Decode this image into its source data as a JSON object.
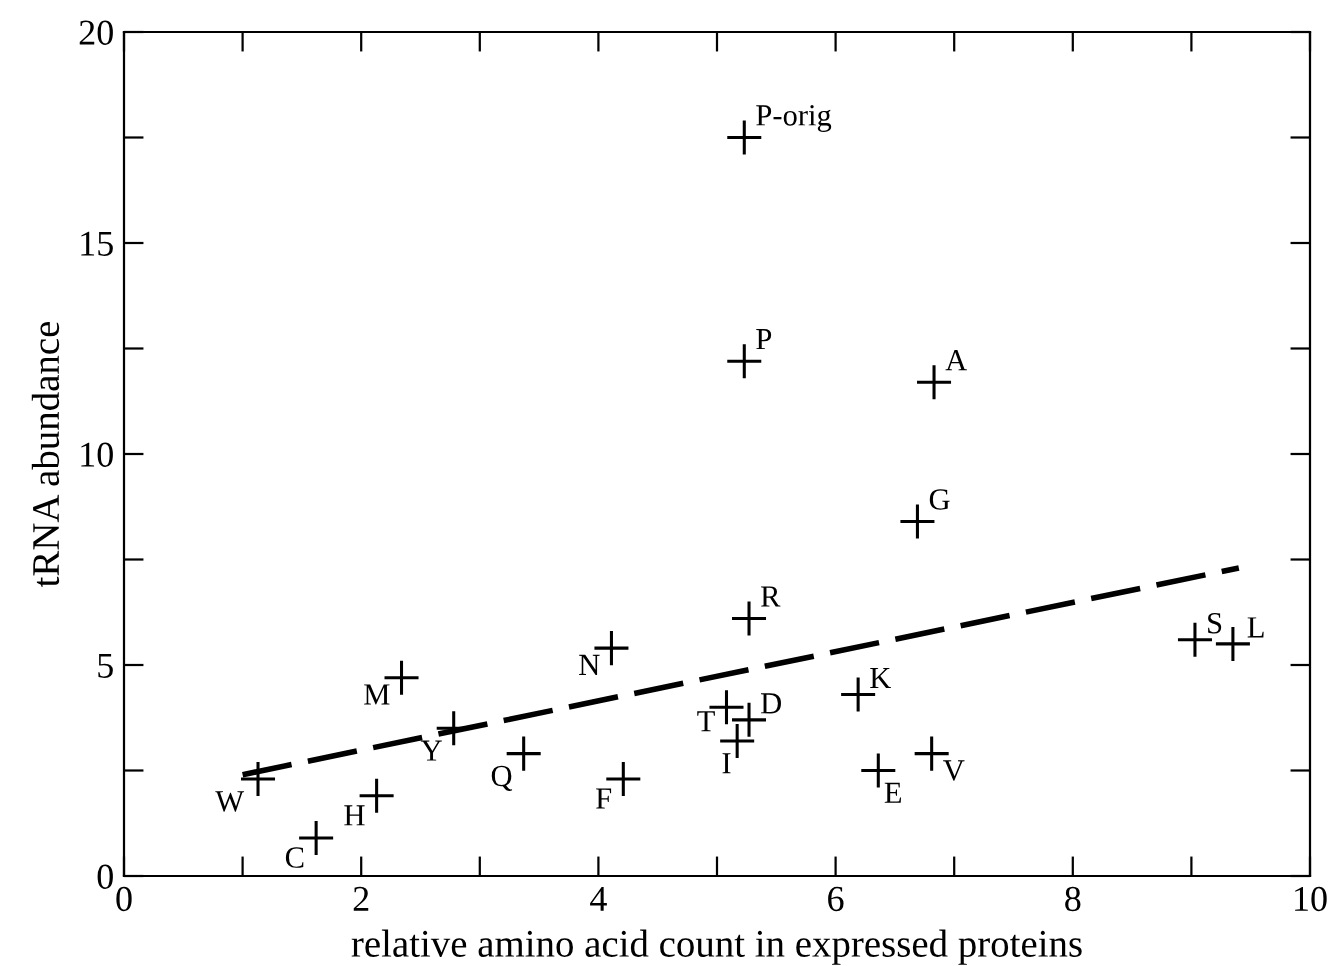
{
  "chart_data": {
    "type": "scatter",
    "xlabel": "relative amino acid count in expressed proteins",
    "ylabel": "tRNA abundance",
    "xlim": [
      0,
      10
    ],
    "ylim": [
      0,
      20
    ],
    "xticks": [
      0,
      {
        "value": 1,
        "label": null
      },
      2,
      {
        "value": 3,
        "label": null
      },
      4,
      {
        "value": 5,
        "label": null
      },
      6,
      {
        "value": 7,
        "label": null
      },
      8,
      {
        "value": 9,
        "label": null
      },
      10
    ],
    "yticks": [
      0,
      {
        "value": 2.5,
        "label": null
      },
      5,
      {
        "value": 7.5,
        "label": null
      },
      10,
      {
        "value": 12.5,
        "label": null
      },
      15,
      {
        "value": 17.5,
        "label": null
      },
      20
    ],
    "grid": false,
    "legend": false,
    "series": [
      {
        "color": "#000000",
        "marker": "cross",
        "x": [
          5.23,
          5.23,
          6.83,
          6.69,
          5.27,
          4.11,
          2.34,
          1.13,
          2.78,
          3.37,
          2.13,
          1.62,
          4.21,
          5.08,
          5.27,
          5.17,
          6.19,
          6.36,
          6.81,
          9.03,
          9.35
        ],
        "values": [
          17.5,
          12.2,
          11.7,
          8.4,
          6.1,
          5.4,
          4.7,
          2.3,
          3.5,
          2.9,
          1.9,
          0.9,
          2.3,
          4.0,
          3.7,
          3.2,
          4.3,
          2.5,
          2.9,
          5.6,
          5.5
        ]
      },
      {
        "type": "line",
        "color": "#000000",
        "line_style": "dashed",
        "marker": "none",
        "x": [
          1.0,
          9.4
        ],
        "values": [
          2.4,
          7.3
        ]
      }
    ],
    "annotations": [
      {
        "text": "P-orig",
        "x": 5.23,
        "y": 17.5
      },
      {
        "text": "P",
        "x": 5.23,
        "y": 12.2
      },
      {
        "text": "A",
        "x": 6.83,
        "y": 11.7
      },
      {
        "text": "G",
        "x": 6.69,
        "y": 8.4
      },
      {
        "text": "R",
        "x": 5.27,
        "y": 6.1
      },
      {
        "text": "N",
        "x": 4.11,
        "y": 5.4
      },
      {
        "text": "M",
        "x": 2.34,
        "y": 4.7
      },
      {
        "text": "W",
        "x": 1.13,
        "y": 2.3
      },
      {
        "text": "Y",
        "x": 2.78,
        "y": 3.5
      },
      {
        "text": "Q",
        "x": 3.37,
        "y": 2.9
      },
      {
        "text": "H",
        "x": 2.13,
        "y": 1.9
      },
      {
        "text": "C",
        "x": 1.62,
        "y": 0.9
      },
      {
        "text": "F",
        "x": 4.21,
        "y": 2.3
      },
      {
        "text": "T",
        "x": 5.08,
        "y": 4.0
      },
      {
        "text": "D",
        "x": 5.27,
        "y": 3.7
      },
      {
        "text": "I",
        "x": 5.17,
        "y": 3.2
      },
      {
        "text": "K",
        "x": 6.19,
        "y": 4.3
      },
      {
        "text": "E",
        "x": 6.36,
        "y": 2.5
      },
      {
        "text": "V",
        "x": 6.81,
        "y": 2.9
      },
      {
        "text": "S",
        "x": 9.03,
        "y": 5.6
      },
      {
        "text": "L",
        "x": 9.35,
        "y": 5.5
      }
    ]
  }
}
